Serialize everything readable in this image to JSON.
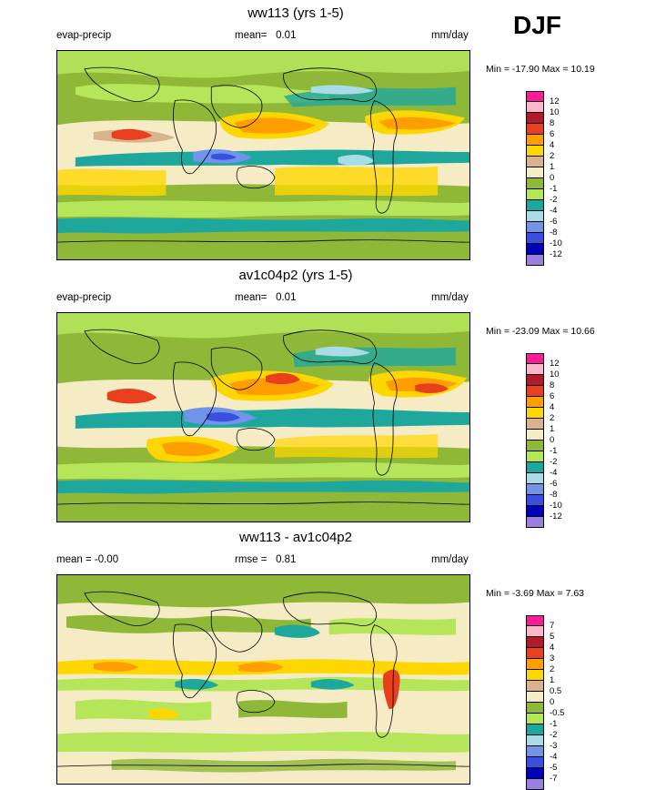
{
  "season": "DJF",
  "panels": [
    {
      "title": "ww113 (yrs 1-5)",
      "left_header": "evap-precip",
      "mean_label": "mean=",
      "mean_value": "0.01",
      "units": "mm/day",
      "min_label": "Min =",
      "min_value": "-17.90",
      "max_label": "Max =",
      "max_value": "10.19",
      "legend": [
        {
          "label": "12",
          "color": "#ff1a9c"
        },
        {
          "label": "10",
          "color": "#ffb6c8"
        },
        {
          "label": "8",
          "color": "#b2192a"
        },
        {
          "label": "6",
          "color": "#e8401e"
        },
        {
          "label": "4",
          "color": "#ff9e00"
        },
        {
          "label": "2",
          "color": "#ffd700"
        },
        {
          "label": "1",
          "color": "#d9b38c"
        },
        {
          "label": "0",
          "color": "#f5ebc5"
        },
        {
          "label": "-1",
          "color": "#8fb838"
        },
        {
          "label": "-2",
          "color": "#b5e65a"
        },
        {
          "label": "-4",
          "color": "#1ea89d"
        },
        {
          "label": "-6",
          "color": "#a8dde8"
        },
        {
          "label": "-8",
          "color": "#6f94ea"
        },
        {
          "label": "-10",
          "color": "#3a50dc"
        },
        {
          "label": "-12",
          "color": "#0000b8"
        },
        {
          "label": "",
          "color": "#9b7fe0"
        }
      ]
    },
    {
      "title": "av1c04p2 (yrs 1-5)",
      "left_header": "evap-precip",
      "mean_label": "mean=",
      "mean_value": "0.01",
      "units": "mm/day",
      "min_label": "Min =",
      "min_value": "-23.09",
      "max_label": "Max =",
      "max_value": "10.66",
      "legend": [
        {
          "label": "12",
          "color": "#ff1a9c"
        },
        {
          "label": "10",
          "color": "#ffb6c8"
        },
        {
          "label": "8",
          "color": "#b2192a"
        },
        {
          "label": "6",
          "color": "#e8401e"
        },
        {
          "label": "4",
          "color": "#ff9e00"
        },
        {
          "label": "2",
          "color": "#ffd700"
        },
        {
          "label": "1",
          "color": "#d9b38c"
        },
        {
          "label": "0",
          "color": "#f5ebc5"
        },
        {
          "label": "-1",
          "color": "#8fb838"
        },
        {
          "label": "-2",
          "color": "#b5e65a"
        },
        {
          "label": "-4",
          "color": "#1ea89d"
        },
        {
          "label": "-6",
          "color": "#a8dde8"
        },
        {
          "label": "-8",
          "color": "#6f94ea"
        },
        {
          "label": "-10",
          "color": "#3a50dc"
        },
        {
          "label": "-12",
          "color": "#0000b8"
        },
        {
          "label": "",
          "color": "#9b7fe0"
        }
      ]
    },
    {
      "title": "ww113 - av1c04p2",
      "left_header": "mean =  -0.00",
      "mean_label": "rmse =",
      "mean_value": "0.81",
      "units": "mm/day",
      "min_label": "Min =",
      "min_value": "-3.69",
      "max_label": "Max =",
      "max_value": "7.63",
      "legend": [
        {
          "label": "7",
          "color": "#ff1a9c"
        },
        {
          "label": "5",
          "color": "#ffb6c8"
        },
        {
          "label": "4",
          "color": "#b2192a"
        },
        {
          "label": "3",
          "color": "#e8401e"
        },
        {
          "label": "2",
          "color": "#ff9e00"
        },
        {
          "label": "1",
          "color": "#ffd700"
        },
        {
          "label": "0.5",
          "color": "#d9b38c"
        },
        {
          "label": "0",
          "color": "#f5ebc5"
        },
        {
          "label": "-0.5",
          "color": "#8fb838"
        },
        {
          "label": "-1",
          "color": "#b5e65a"
        },
        {
          "label": "-2",
          "color": "#1ea89d"
        },
        {
          "label": "-3",
          "color": "#a8dde8"
        },
        {
          "label": "-4",
          "color": "#6f94ea"
        },
        {
          "label": "-5",
          "color": "#3a50dc"
        },
        {
          "label": "-7",
          "color": "#0000b8"
        },
        {
          "label": "",
          "color": "#9b7fe0"
        }
      ]
    }
  ],
  "chart_data": [
    {
      "type": "heatmap",
      "title": "ww113 (yrs 1-5)",
      "variable": "evap-precip",
      "units": "mm/day",
      "mean": 0.01,
      "min": -17.9,
      "max": 10.19,
      "contour_levels": [
        -12,
        -10,
        -8,
        -6,
        -4,
        -2,
        -1,
        0,
        1,
        2,
        4,
        6,
        8,
        10,
        12
      ]
    },
    {
      "type": "heatmap",
      "title": "av1c04p2 (yrs 1-5)",
      "variable": "evap-precip",
      "units": "mm/day",
      "mean": 0.01,
      "min": -23.09,
      "max": 10.66,
      "contour_levels": [
        -12,
        -10,
        -8,
        -6,
        -4,
        -2,
        -1,
        0,
        1,
        2,
        4,
        6,
        8,
        10,
        12
      ]
    },
    {
      "type": "heatmap",
      "title": "ww113 - av1c04p2",
      "units": "mm/day",
      "mean": -0.0,
      "rmse": 0.81,
      "min": -3.69,
      "max": 7.63,
      "contour_levels": [
        -7,
        -5,
        -4,
        -3,
        -2,
        -1,
        -0.5,
        0,
        0.5,
        1,
        2,
        3,
        4,
        5,
        7
      ]
    }
  ]
}
